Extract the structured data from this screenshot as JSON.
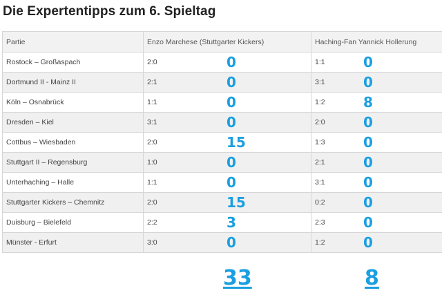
{
  "title": "Die Expertentipps zum 6. Spieltag",
  "headers": {
    "match": "Partie",
    "expert1": "Enzo Marchese (Stuttgarter Kickers)",
    "expert2": "Haching-Fan Yannick Hollerung"
  },
  "rows": [
    {
      "match": "Rostock – Großaspach",
      "tip1": "2:0",
      "pts1": "0",
      "tip2": "1:1",
      "pts2": "0"
    },
    {
      "match": "Dortmund II - Mainz II",
      "tip1": "2:1",
      "pts1": "0",
      "tip2": "3:1",
      "pts2": "0"
    },
    {
      "match": "Köln – Osnabrück",
      "tip1": "1:1",
      "pts1": "0",
      "tip2": "1:2",
      "pts2": "8"
    },
    {
      "match": "Dresden – Kiel",
      "tip1": "3:1",
      "pts1": "0",
      "tip2": "2:0",
      "pts2": "0"
    },
    {
      "match": "Cottbus – Wiesbaden",
      "tip1": "2:0",
      "pts1": "15",
      "tip2": "1:3",
      "pts2": "0"
    },
    {
      "match": "Stuttgart II – Regensburg",
      "tip1": "1:0",
      "pts1": "0",
      "tip2": "2:1",
      "pts2": "0"
    },
    {
      "match": "Unterhaching – Halle",
      "tip1": "1:1",
      "pts1": "0",
      "tip2": "3:1",
      "pts2": "0"
    },
    {
      "match": "Stuttgarter Kickers – Chemnitz",
      "tip1": "2:0",
      "pts1": "15",
      "tip2": "0:2",
      "pts2": "0"
    },
    {
      "match": "Duisburg – Bielefeld",
      "tip1": "2:2",
      "pts1": "3",
      "tip2": "2:3",
      "pts2": "0"
    },
    {
      "match": "Münster - Erfurt",
      "tip1": "3:0",
      "pts1": "0",
      "tip2": "1:2",
      "pts2": "0"
    }
  ],
  "totals": {
    "expert1": "33",
    "expert2": "8"
  },
  "colors": {
    "points": "#1a9fe0",
    "header_bg": "#f2f2f2",
    "row_alt_bg": "#f0f0f0",
    "border": "#d6d6d6"
  }
}
